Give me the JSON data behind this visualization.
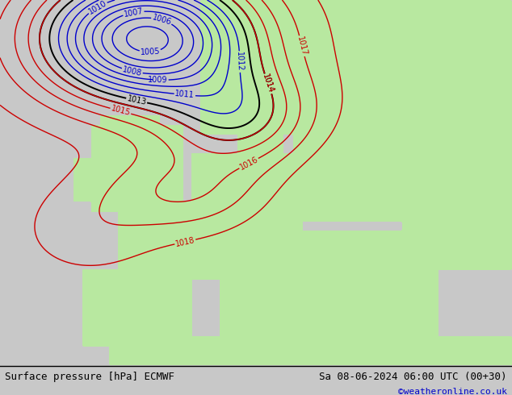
{
  "title_left": "Surface pressure [hPa] ECMWF",
  "title_right": "Sa 08-06-2024 06:00 UTC (00+30)",
  "credit": "©weatheronline.co.uk",
  "bg_color": "#c8c8c8",
  "land_color": "#b8e8a0",
  "sea_color": "#d4d4e0",
  "blue_contour_color": "#0000cc",
  "black_contour_color": "#000000",
  "red_contour_color": "#cc0000",
  "footer_fontsize": 9,
  "credit_fontsize": 8,
  "credit_color": "#0000cc"
}
